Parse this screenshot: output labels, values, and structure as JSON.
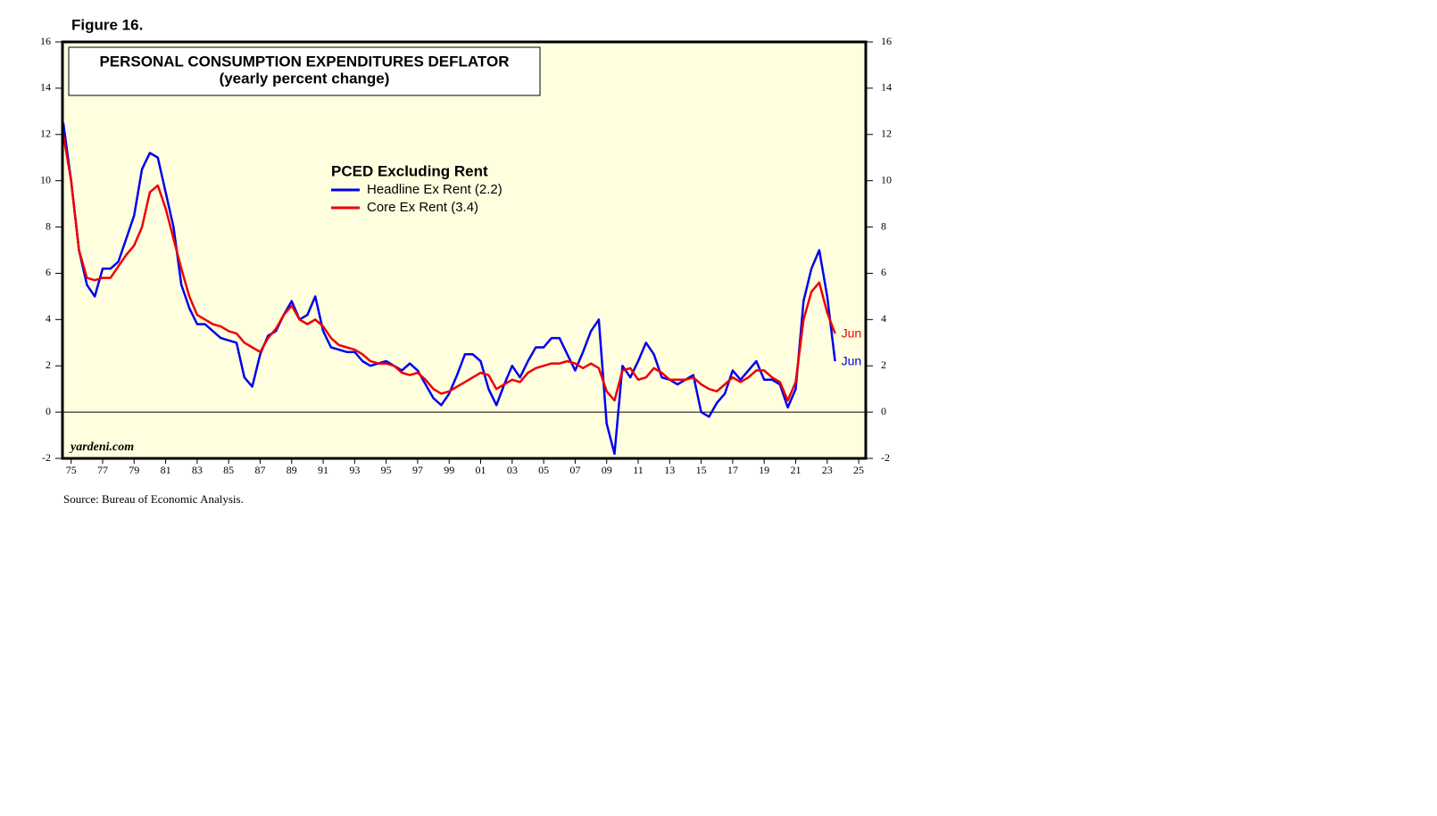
{
  "chart_data": {
    "type": "line",
    "header": "Figure 16.",
    "title": "PERSONAL CONSUMPTION EXPENDITURES DEFLATOR",
    "subtitle": "(yearly percent change)",
    "legend_title": "PCED Excluding Rent",
    "watermark": "yardeni.com",
    "source": "Source: Bureau of Economic Analysis.",
    "x": [
      1974.5,
      1975,
      1975.5,
      1976,
      1976.5,
      1977,
      1977.5,
      1978,
      1978.5,
      1979,
      1979.5,
      1980,
      1980.5,
      1981,
      1981.5,
      1982,
      1982.5,
      1983,
      1983.5,
      1984,
      1984.5,
      1985,
      1985.5,
      1986,
      1986.5,
      1987,
      1987.5,
      1988,
      1988.5,
      1989,
      1989.5,
      1990,
      1990.5,
      1991,
      1991.5,
      1992,
      1992.5,
      1993,
      1993.5,
      1994,
      1994.5,
      1995,
      1995.5,
      1996,
      1996.5,
      1997,
      1997.5,
      1998,
      1998.5,
      1999,
      1999.5,
      2000,
      2000.5,
      2001,
      2001.5,
      2002,
      2002.5,
      2003,
      2003.5,
      2004,
      2004.5,
      2005,
      2005.5,
      2006,
      2006.5,
      2007,
      2007.5,
      2008,
      2008.5,
      2009,
      2009.5,
      2010,
      2010.5,
      2011,
      2011.5,
      2012,
      2012.5,
      2013,
      2013.5,
      2014,
      2014.5,
      2015,
      2015.5,
      2016,
      2016.5,
      2017,
      2017.5,
      2018,
      2018.5,
      2019,
      2019.5,
      2020,
      2020.5,
      2021,
      2021.5,
      2022,
      2022.5,
      2023,
      2023.5
    ],
    "series": [
      {
        "name": "Headline Ex Rent (2.2)",
        "color": "#0000ee",
        "end_label": "Jun",
        "values": [
          12.5,
          10,
          7,
          5.5,
          5,
          6.2,
          6.2,
          6.5,
          7.5,
          8.5,
          10.5,
          11.2,
          11,
          9.5,
          8,
          5.5,
          4.5,
          3.8,
          3.8,
          3.5,
          3.2,
          3.1,
          3.0,
          1.5,
          1.1,
          2.5,
          3.3,
          3.5,
          4.2,
          4.8,
          4.0,
          4.2,
          5.0,
          3.5,
          2.8,
          2.7,
          2.6,
          2.6,
          2.2,
          2.0,
          2.1,
          2.2,
          2.0,
          1.8,
          2.1,
          1.8,
          1.2,
          0.6,
          0.3,
          0.8,
          1.6,
          2.5,
          2.5,
          2.2,
          1.0,
          0.3,
          1.2,
          2.0,
          1.5,
          2.2,
          2.8,
          2.8,
          3.2,
          3.2,
          2.5,
          1.8,
          2.6,
          3.5,
          4.0,
          -0.5,
          -1.8,
          2.0,
          1.5,
          2.2,
          3.0,
          2.5,
          1.5,
          1.4,
          1.2,
          1.4,
          1.6,
          0.0,
          -0.2,
          0.4,
          0.8,
          1.8,
          1.4,
          1.8,
          2.2,
          1.4,
          1.4,
          1.2,
          0.2,
          1.0,
          4.8,
          6.2,
          7.0,
          5.0,
          2.2
        ]
      },
      {
        "name": "Core Ex Rent (3.4)",
        "color": "#ee0000",
        "end_label": "Jun",
        "values": [
          12,
          10,
          7,
          5.8,
          5.7,
          5.8,
          5.8,
          6.3,
          6.8,
          7.2,
          8.0,
          9.5,
          9.8,
          8.8,
          7.5,
          6.2,
          5.0,
          4.2,
          4.0,
          3.8,
          3.7,
          3.5,
          3.4,
          3.0,
          2.8,
          2.6,
          3.2,
          3.6,
          4.2,
          4.6,
          4.0,
          3.8,
          4.0,
          3.7,
          3.2,
          2.9,
          2.8,
          2.7,
          2.5,
          2.2,
          2.1,
          2.1,
          2.0,
          1.7,
          1.6,
          1.7,
          1.4,
          1.0,
          0.8,
          0.9,
          1.1,
          1.3,
          1.5,
          1.7,
          1.6,
          1.0,
          1.2,
          1.4,
          1.3,
          1.7,
          1.9,
          2.0,
          2.1,
          2.1,
          2.2,
          2.1,
          1.9,
          2.1,
          1.9,
          0.9,
          0.5,
          1.8,
          1.9,
          1.4,
          1.5,
          1.9,
          1.7,
          1.4,
          1.4,
          1.4,
          1.5,
          1.2,
          1.0,
          0.9,
          1.2,
          1.5,
          1.3,
          1.5,
          1.8,
          1.8,
          1.5,
          1.3,
          0.5,
          1.3,
          4.0,
          5.2,
          5.6,
          4.3,
          3.4
        ]
      }
    ],
    "xlim": [
      1974.45,
      2025.45
    ],
    "xticks": [
      {
        "value": 1975,
        "label": "75"
      },
      {
        "value": 1977,
        "label": "77"
      },
      {
        "value": 1979,
        "label": "79"
      },
      {
        "value": 1981,
        "label": "81"
      },
      {
        "value": 1983,
        "label": "83"
      },
      {
        "value": 1985,
        "label": "85"
      },
      {
        "value": 1987,
        "label": "87"
      },
      {
        "value": 1989,
        "label": "89"
      },
      {
        "value": 1991,
        "label": "91"
      },
      {
        "value": 1993,
        "label": "93"
      },
      {
        "value": 1995,
        "label": "95"
      },
      {
        "value": 1997,
        "label": "97"
      },
      {
        "value": 1999,
        "label": "99"
      },
      {
        "value": 2001,
        "label": "01"
      },
      {
        "value": 2003,
        "label": "03"
      },
      {
        "value": 2005,
        "label": "05"
      },
      {
        "value": 2007,
        "label": "07"
      },
      {
        "value": 2009,
        "label": "09"
      },
      {
        "value": 2011,
        "label": "11"
      },
      {
        "value": 2013,
        "label": "13"
      },
      {
        "value": 2015,
        "label": "15"
      },
      {
        "value": 2017,
        "label": "17"
      },
      {
        "value": 2019,
        "label": "19"
      },
      {
        "value": 2021,
        "label": "21"
      },
      {
        "value": 2023,
        "label": "23"
      },
      {
        "value": 2025,
        "label": "25"
      }
    ],
    "ylim": [
      -2,
      16
    ],
    "yticks": [
      -2,
      0,
      2,
      4,
      6,
      8,
      10,
      12,
      14,
      16
    ],
    "zero_line": true
  }
}
